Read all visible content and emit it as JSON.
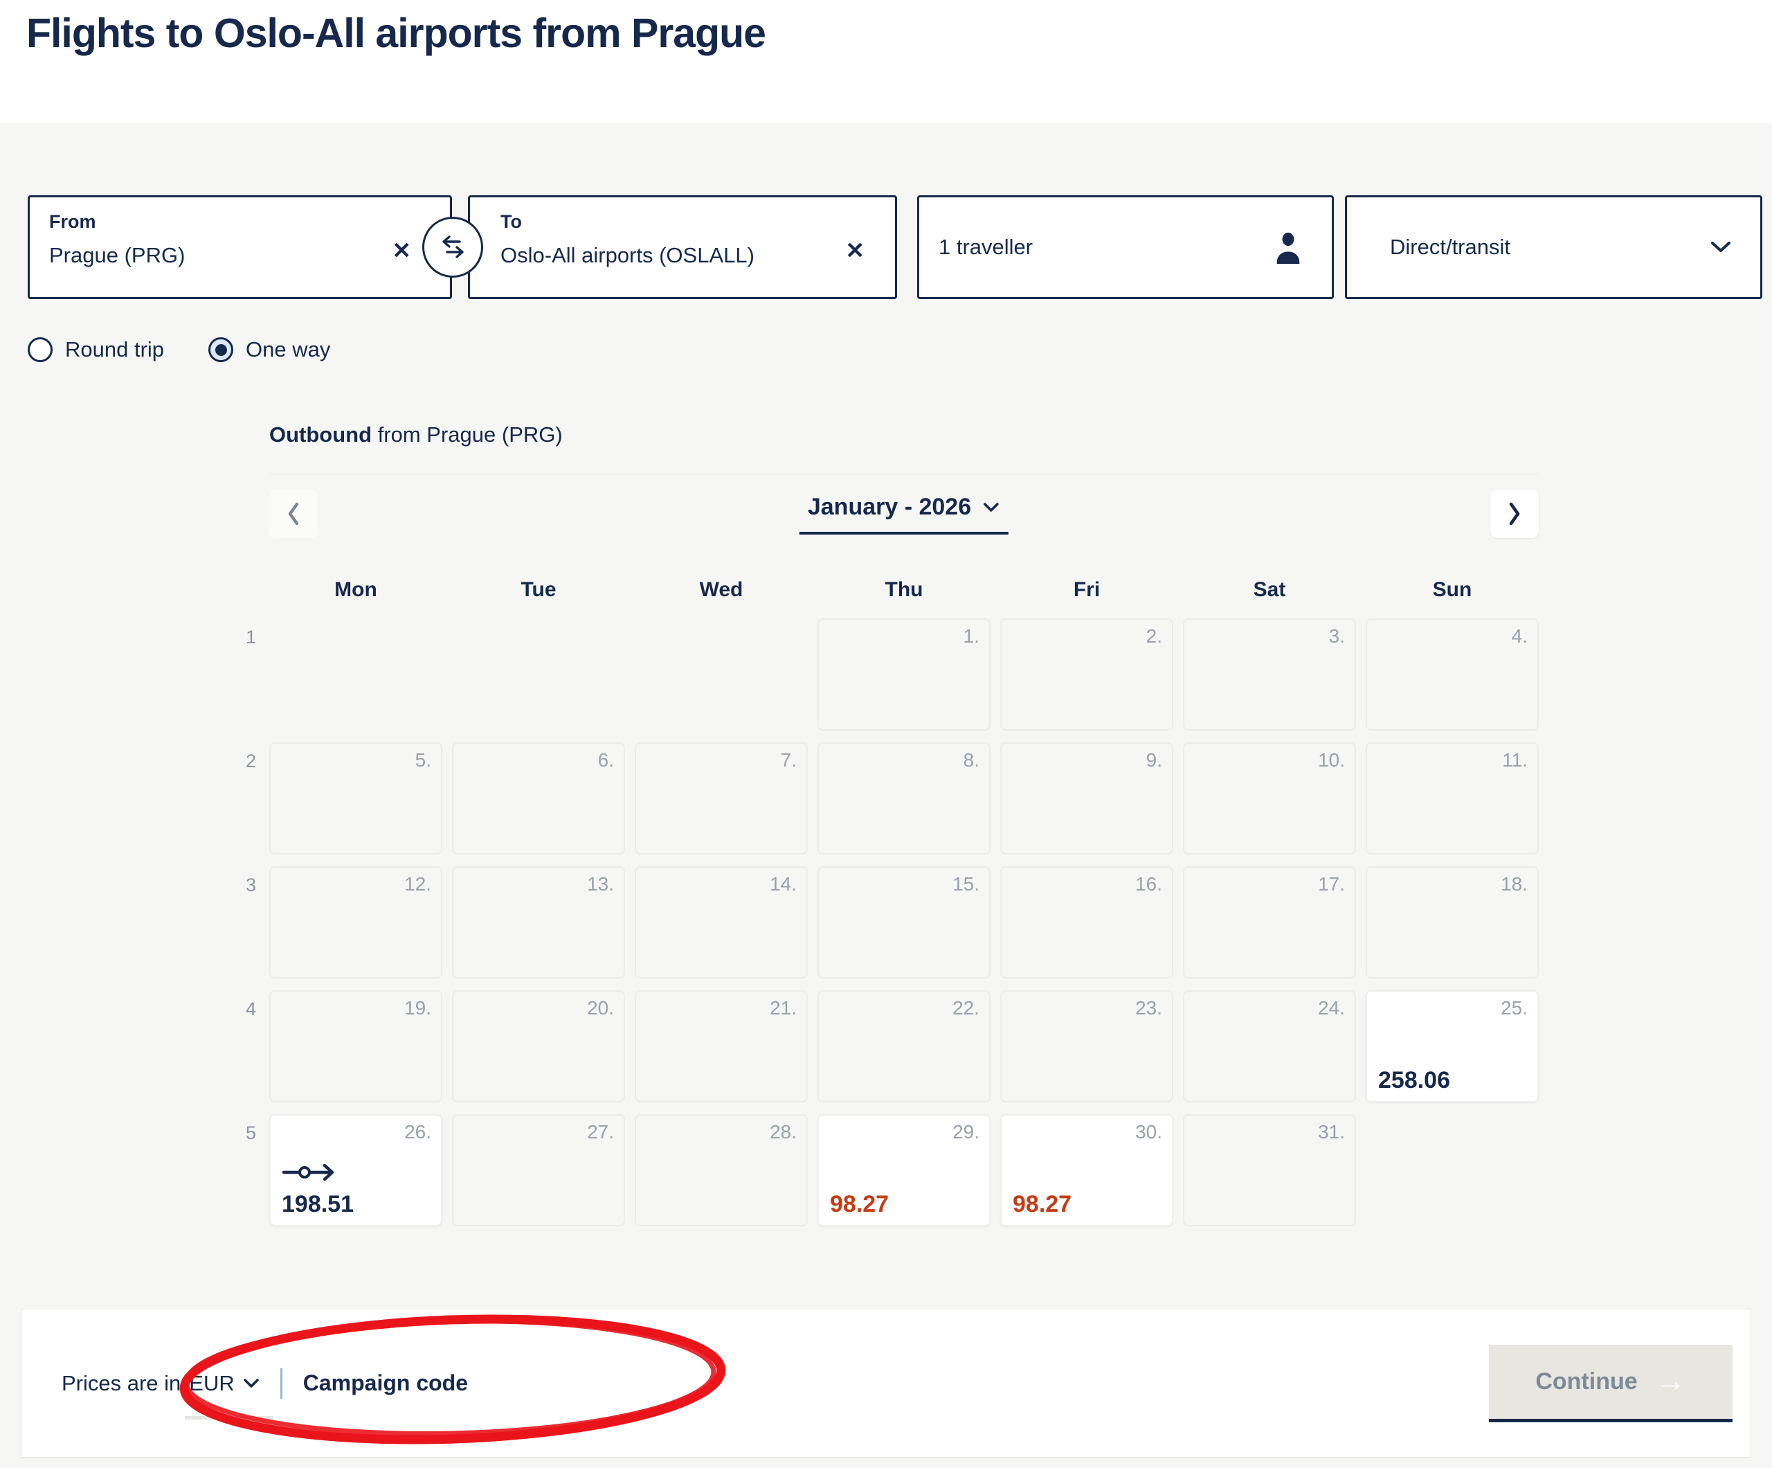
{
  "page": {
    "title": "Flights to Oslo-All airports from Prague"
  },
  "search": {
    "from": {
      "label": "From",
      "value": "Prague (PRG)"
    },
    "to": {
      "label": "To",
      "value": "Oslo-All airports (OSLALL)"
    },
    "travellers": {
      "value": "1 traveller"
    },
    "stops": {
      "value": "Direct/transit"
    }
  },
  "trip_type": {
    "options": [
      {
        "label": "Round trip",
        "selected": false
      },
      {
        "label": "One way",
        "selected": true
      }
    ]
  },
  "calendar": {
    "heading": {
      "bold": "Outbound",
      "rest": "from Prague (PRG)"
    },
    "month_label": "January - 2026",
    "day_headers": [
      "Mon",
      "Tue",
      "Wed",
      "Thu",
      "Fri",
      "Sat",
      "Sun"
    ],
    "weeks": [
      {
        "week": "1",
        "days": [
          null,
          null,
          null,
          {
            "day": "1."
          },
          {
            "day": "2."
          },
          {
            "day": "3."
          },
          {
            "day": "4."
          }
        ]
      },
      {
        "week": "2",
        "days": [
          {
            "day": "5."
          },
          {
            "day": "6."
          },
          {
            "day": "7."
          },
          {
            "day": "8."
          },
          {
            "day": "9."
          },
          {
            "day": "10."
          },
          {
            "day": "11."
          }
        ]
      },
      {
        "week": "3",
        "days": [
          {
            "day": "12."
          },
          {
            "day": "13."
          },
          {
            "day": "14."
          },
          {
            "day": "15."
          },
          {
            "day": "16."
          },
          {
            "day": "17."
          },
          {
            "day": "18."
          }
        ]
      },
      {
        "week": "4",
        "days": [
          {
            "day": "19."
          },
          {
            "day": "20."
          },
          {
            "day": "21."
          },
          {
            "day": "22."
          },
          {
            "day": "23."
          },
          {
            "day": "24."
          },
          {
            "day": "25.",
            "price": "258.06",
            "available": true
          }
        ]
      },
      {
        "week": "5",
        "days": [
          {
            "day": "26.",
            "price": "198.51",
            "available": true,
            "transit": true
          },
          {
            "day": "27."
          },
          {
            "day": "28."
          },
          {
            "day": "29.",
            "price": "98.27",
            "available": true,
            "sale": true
          },
          {
            "day": "30.",
            "price": "98.27",
            "available": true,
            "sale": true
          },
          {
            "day": "31."
          },
          null
        ]
      }
    ]
  },
  "footer": {
    "prices_prefix": "Prices are in",
    "currency": "EUR",
    "campaign_code_label": "Campaign code",
    "continue_label": "Continue"
  },
  "colors": {
    "navy": "#16294c",
    "muted_gray": "#9aa1ab",
    "sale_price_red": "#c43c17",
    "annotation_red": "#e9151b",
    "page_bg": "#f6f6f5"
  }
}
